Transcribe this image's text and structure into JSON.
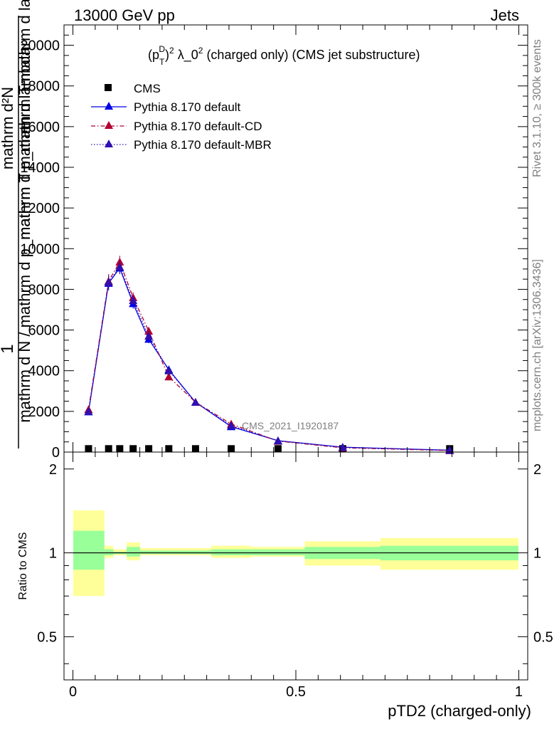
{
  "header": {
    "left": "13000 GeV pp",
    "right": "Jets"
  },
  "side_text": {
    "rivet": "Rivet 3.1.10, ≥ 300k events",
    "mcplots": "mcplots.cern.ch [arXiv:1306.3436]"
  },
  "chart_data": {
    "type": "line",
    "title": "(p_T^D)^2 λ_0^2 (charged only) (CMS jet substructure)",
    "title_parts": {
      "p": "(p",
      "sub_t": "T",
      "sup_d": "D",
      "close": ")",
      "sup_2": "2",
      "lambda": " λ_0",
      "sup_2b": "2",
      "rest": " (charged only) (CMS jet substructure)"
    },
    "ylabel_main": {
      "one": "1",
      "numerator": "mathrm d²N",
      "denominator": "mathrm d N / mathrm d p_mathrm T mathrm d lambda",
      "overlay": "mathrm d p_mathrm T mathrm d lambda"
    },
    "xlabel": "pTD2 (charged-only)",
    "ylabel_ratio": "Ratio to CMS",
    "watermark": "CMS_2021_I1920187",
    "ylim_main": [
      0,
      21000
    ],
    "ylim_ratio": [
      0.35,
      2.3
    ],
    "xlim": [
      -0.02,
      1.02
    ],
    "y_ticks_main": [
      0,
      2000,
      4000,
      6000,
      8000,
      10000,
      12000,
      14000,
      16000,
      18000,
      20000
    ],
    "y_tick_labels_main": [
      "0",
      "2000",
      "4000",
      "6000",
      "8000",
      "10000",
      "12000",
      "14000",
      "16000",
      "18000",
      "20000"
    ],
    "y_ticks_ratio": [
      0.5,
      1,
      2
    ],
    "y_tick_labels_ratio": [
      "0.5",
      "1",
      "2"
    ],
    "x_ticks": [
      0,
      0.5,
      1
    ],
    "x_tick_labels": [
      "0",
      "0.5",
      "1"
    ],
    "legend_position": "top-left",
    "bins": [
      {
        "lo": 0.0,
        "hi": 0.07,
        "x": 0.035
      },
      {
        "lo": 0.07,
        "hi": 0.09,
        "x": 0.08
      },
      {
        "lo": 0.09,
        "hi": 0.12,
        "x": 0.105
      },
      {
        "lo": 0.12,
        "hi": 0.15,
        "x": 0.135
      },
      {
        "lo": 0.15,
        "hi": 0.19,
        "x": 0.17
      },
      {
        "lo": 0.19,
        "hi": 0.24,
        "x": 0.215
      },
      {
        "lo": 0.24,
        "hi": 0.31,
        "x": 0.275
      },
      {
        "lo": 0.31,
        "hi": 0.4,
        "x": 0.355
      },
      {
        "lo": 0.4,
        "hi": 0.52,
        "x": 0.46
      },
      {
        "lo": 0.52,
        "hi": 0.69,
        "x": 0.605
      },
      {
        "lo": 0.69,
        "hi": 1.0,
        "x": 0.845
      }
    ],
    "series": [
      {
        "name": "CMS",
        "color": "#000000",
        "marker": "square",
        "style": "none",
        "values": [
          60,
          60,
          60,
          60,
          60,
          60,
          60,
          60,
          60,
          60,
          60
        ]
      },
      {
        "name": "Pythia 8.170 default",
        "color": "#0000e6",
        "marker": "triangle",
        "style": "solid",
        "values": [
          1980,
          8300,
          9050,
          7300,
          5550,
          4050,
          2450,
          1250,
          560,
          240,
          90
        ],
        "errors": [
          150,
          350,
          300,
          250,
          200,
          150,
          100,
          70,
          40,
          25,
          15
        ]
      },
      {
        "name": "Pythia 8.170 default-CD",
        "color": "#b00030",
        "marker": "triangle",
        "style": "dashdot",
        "values": [
          2090,
          8400,
          9350,
          7600,
          5950,
          3700,
          2450,
          1380,
          540,
          210,
          75
        ],
        "errors": [
          150,
          350,
          300,
          250,
          200,
          150,
          100,
          70,
          40,
          25,
          15
        ]
      },
      {
        "name": "Pythia 8.170 default-MBR",
        "color": "#3010b0",
        "marker": "triangle",
        "style": "dotted",
        "values": [
          2000,
          8350,
          9100,
          7450,
          5700,
          4000,
          2450,
          1300,
          550,
          230,
          85
        ],
        "errors": [
          150,
          350,
          300,
          250,
          200,
          150,
          100,
          70,
          40,
          25,
          15
        ]
      }
    ],
    "ratio_bands": [
      {
        "lo": 0.0,
        "hi": 0.07,
        "inner": [
          0.87,
          1.2
        ],
        "outer": [
          0.7,
          1.42
        ]
      },
      {
        "lo": 0.07,
        "hi": 0.09,
        "inner": [
          0.98,
          1.03
        ],
        "outer": [
          0.96,
          1.06
        ]
      },
      {
        "lo": 0.09,
        "hi": 0.12,
        "inner": [
          0.99,
          1.01
        ],
        "outer": [
          0.98,
          1.03
        ]
      },
      {
        "lo": 0.12,
        "hi": 0.15,
        "inner": [
          0.97,
          1.05
        ],
        "outer": [
          0.94,
          1.09
        ]
      },
      {
        "lo": 0.15,
        "hi": 0.19,
        "inner": [
          0.99,
          1.02
        ],
        "outer": [
          0.98,
          1.04
        ]
      },
      {
        "lo": 0.19,
        "hi": 0.24,
        "inner": [
          0.99,
          1.02
        ],
        "outer": [
          0.98,
          1.04
        ]
      },
      {
        "lo": 0.24,
        "hi": 0.31,
        "inner": [
          0.99,
          1.02
        ],
        "outer": [
          0.98,
          1.04
        ]
      },
      {
        "lo": 0.31,
        "hi": 0.4,
        "inner": [
          0.98,
          1.03
        ],
        "outer": [
          0.96,
          1.06
        ]
      },
      {
        "lo": 0.4,
        "hi": 0.52,
        "inner": [
          0.98,
          1.03
        ],
        "outer": [
          0.97,
          1.05
        ]
      },
      {
        "lo": 0.52,
        "hi": 0.69,
        "inner": [
          0.95,
          1.05
        ],
        "outer": [
          0.9,
          1.1
        ]
      },
      {
        "lo": 0.69,
        "hi": 1.0,
        "inner": [
          0.94,
          1.06
        ],
        "outer": [
          0.87,
          1.13
        ]
      }
    ],
    "band_colors": {
      "inner": "#99ff99",
      "outer": "#ffff99"
    }
  }
}
